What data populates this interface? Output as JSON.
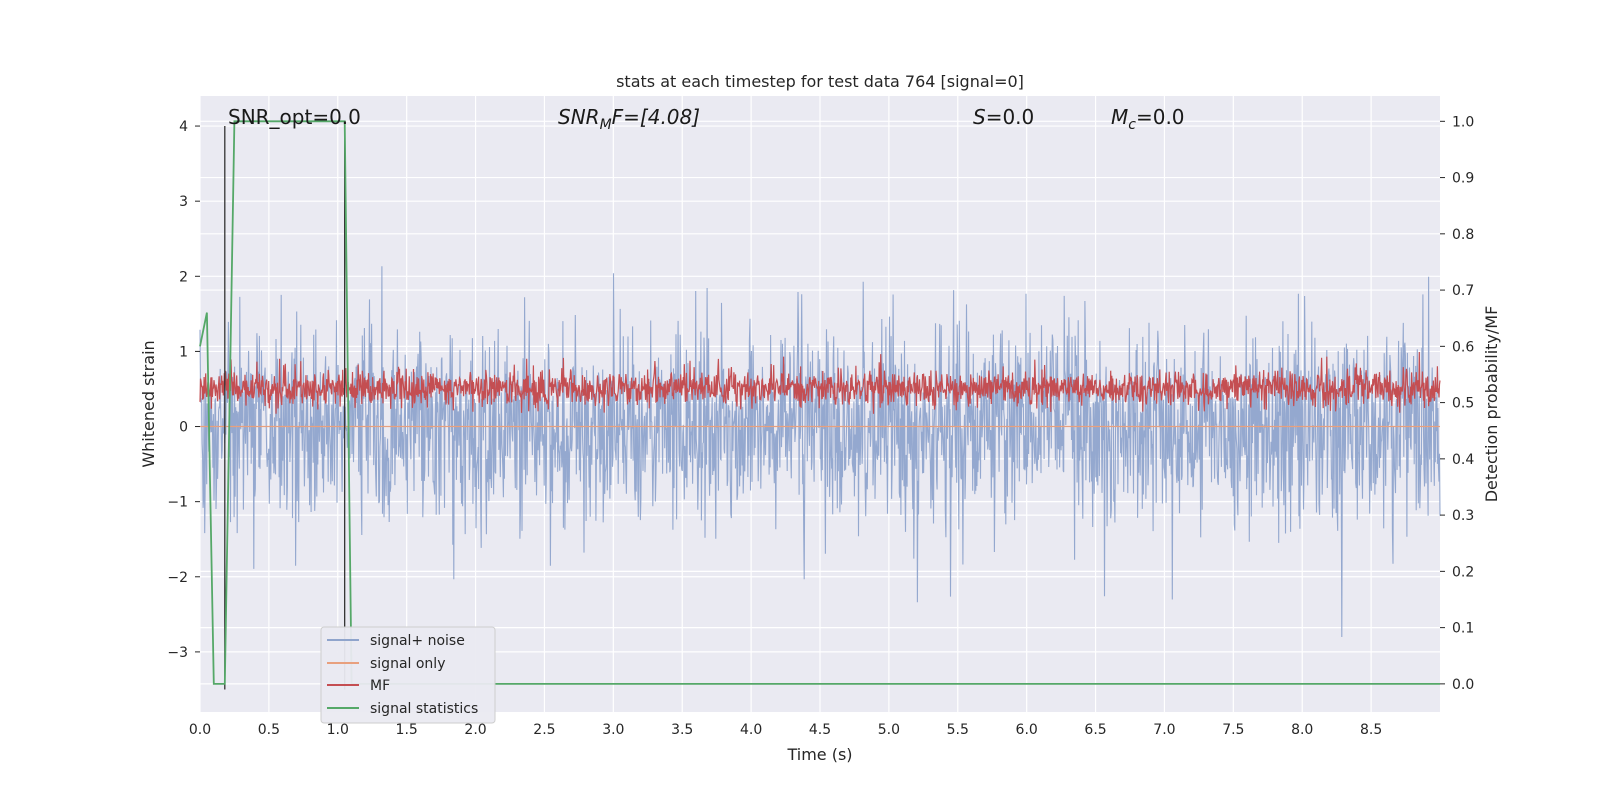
{
  "chart_data": {
    "type": "line",
    "title": "stats at each timestep for test data 764 [signal=0]",
    "xlabel": "Time (s)",
    "ylabel_left": "Whitened strain",
    "ylabel_right": "Detection probability/MF",
    "xlim": [
      0.0,
      9.0
    ],
    "ylim_left": [
      -3.8,
      4.4
    ],
    "ylim_right": [
      -0.05,
      1.045
    ],
    "x_ticks": [
      "0.0",
      "0.5",
      "1.0",
      "1.5",
      "2.0",
      "2.5",
      "3.0",
      "3.5",
      "4.0",
      "4.5",
      "5.0",
      "5.5",
      "6.0",
      "6.5",
      "7.0",
      "7.5",
      "8.0",
      "8.5"
    ],
    "y_ticks_left": [
      "−3",
      "−2",
      "−1",
      "0",
      "1",
      "2",
      "3",
      "4"
    ],
    "y_ticks_right": [
      "0.0",
      "0.1",
      "0.2",
      "0.3",
      "0.4",
      "0.5",
      "0.6",
      "0.7",
      "0.8",
      "0.9",
      "1.0"
    ],
    "grid": true,
    "annotations": {
      "snr_opt": "SNR_opt=0.0",
      "snr_mf_prefix": "SNR",
      "snr_mf_sub": "M",
      "snr_mf_suffix": "F=[4.08]",
      "s_prefix": "S",
      "s_suffix": "=0.0",
      "mc_prefix": "M",
      "mc_sub": "c",
      "mc_suffix": "=0.0"
    },
    "legend": {
      "placement": "lower-left",
      "entries": [
        "signal+ noise",
        "signal only",
        "MF",
        "signal statistics"
      ]
    },
    "colors": {
      "noise": "#8fa4cc",
      "signal_only": "#e8a07e",
      "mf": "#c44e52",
      "stats": "#55a868",
      "vline": "#333333",
      "background": "#eaeaf2"
    },
    "series": [
      {
        "name": "signal+ noise",
        "axis": "left",
        "description_range": [
          -3.3,
          4.0
        ],
        "typical_envelope": [
          -2.0,
          2.2
        ]
      },
      {
        "name": "signal only",
        "axis": "left",
        "x": [
          0.0,
          9.0
        ],
        "y": [
          0.0,
          0.0
        ]
      },
      {
        "name": "MF",
        "axis": "right",
        "range": [
          0.48,
          0.6
        ]
      },
      {
        "name": "signal statistics",
        "axis": "right",
        "x": [
          0.0,
          0.05,
          0.1,
          0.12,
          0.18,
          0.25,
          1.05,
          1.1,
          1.15,
          9.0
        ],
        "y": [
          0.6,
          0.66,
          0.0,
          0.0,
          0.0,
          1.0,
          1.0,
          0.0,
          0.0,
          0.0
        ]
      }
    ],
    "vertical_lines": [
      {
        "x": 0.18,
        "y": [
          -3.5,
          4.0
        ]
      },
      {
        "x": 1.05,
        "y": [
          -3.5,
          4.0
        ]
      }
    ]
  }
}
